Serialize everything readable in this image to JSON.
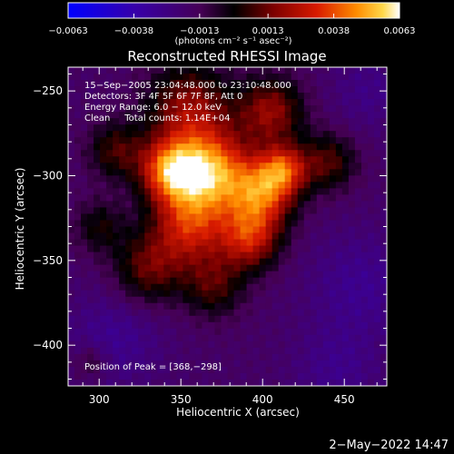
{
  "chart_data": {
    "type": "heatmap",
    "title": "Reconstructed RHESSI Image",
    "xlabel": "Heliocentric X (arcsec)",
    "ylabel": "Heliocentric Y (arcsec)",
    "xlim": [
      281,
      476
    ],
    "ylim": [
      -424,
      -236
    ],
    "x_ticks": [
      300,
      350,
      400,
      450
    ],
    "y_ticks": [
      -250,
      -300,
      -350,
      -400
    ],
    "x_tick_labels": [
      "300",
      "350",
      "400",
      "450"
    ],
    "y_tick_labels": [
      "−250",
      "−300",
      "−350",
      "−400"
    ],
    "colorbar": {
      "range": [
        -0.0063,
        0.0063
      ],
      "ticks": [
        -0.0063,
        -0.0038,
        -0.0013,
        0.0013,
        0.0038,
        0.0063
      ],
      "tick_labels": [
        "−0.0063",
        "−0.0038",
        "−0.0013",
        "0.0013",
        "0.0038",
        "0.0063"
      ],
      "label": "(photons cm⁻² s⁻¹ asec⁻²)"
    },
    "annotations": [
      "15−Sep−2005 23:04:48.000 to 23:10:48.000",
      "Detectors: 3F 4F 5F 6F 7F 8F, Att 0",
      "Energy Range: 6.0 − 12.0 keV",
      "Clean     Total counts: 1.14E+04"
    ],
    "peak_label": "Position of Peak = [368,−298]",
    "peak": [
      368,
      -298
    ],
    "peak_value": 0.0063,
    "sources": [
      {
        "x": 368,
        "y": -298,
        "amp": 0.0062,
        "sigma": 17
      },
      {
        "x": 343,
        "y": -297,
        "amp": 0.0052,
        "sigma": 13
      },
      {
        "x": 400,
        "y": -310,
        "amp": 0.005,
        "sigma": 14
      },
      {
        "x": 413,
        "y": -296,
        "amp": 0.004,
        "sigma": 10
      },
      {
        "x": 355,
        "y": -330,
        "amp": 0.0042,
        "sigma": 16
      },
      {
        "x": 392,
        "y": -337,
        "amp": 0.0042,
        "sigma": 13
      },
      {
        "x": 355,
        "y": -260,
        "amp": 0.0035,
        "sigma": 18
      },
      {
        "x": 405,
        "y": -262,
        "amp": 0.0035,
        "sigma": 14
      },
      {
        "x": 440,
        "y": -292,
        "amp": 0.0026,
        "sigma": 12
      },
      {
        "x": 330,
        "y": -355,
        "amp": 0.0028,
        "sigma": 15
      },
      {
        "x": 370,
        "y": -365,
        "amp": 0.0024,
        "sigma": 13
      },
      {
        "x": 310,
        "y": -285,
        "amp": 0.0024,
        "sigma": 12
      },
      {
        "x": 300,
        "y": -330,
        "amp": 0.0018,
        "sigma": 11
      },
      {
        "x": 295,
        "y": -410,
        "amp": 0.0014,
        "sigma": 7
      },
      {
        "x": 310,
        "y": -395,
        "amp": -0.0012,
        "sigma": 20
      },
      {
        "x": 460,
        "y": -365,
        "amp": -0.0012,
        "sigma": 22
      },
      {
        "x": 445,
        "y": -415,
        "amp": -0.001,
        "sigma": 18
      },
      {
        "x": 465,
        "y": -250,
        "amp": -0.0009,
        "sigma": 16
      }
    ]
  },
  "footer": {
    "timestamp": "2−May−2022 14:47"
  }
}
